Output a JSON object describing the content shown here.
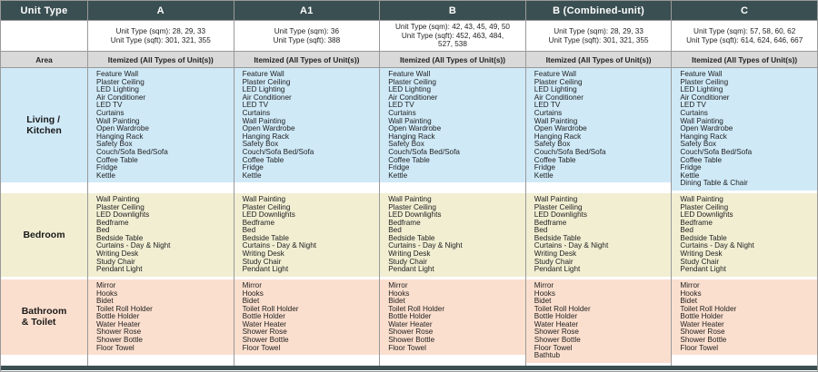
{
  "colors": {
    "header_bg": "#3a4f52",
    "header_text": "#ffffff",
    "area_bg": "#d9d9d9",
    "living_bg": "#cfe9f7",
    "bedroom_bg": "#f1eed2",
    "bathroom_bg": "#fbdfce",
    "border": "#999999",
    "text": "#222222"
  },
  "table": {
    "corner_header": "Unit Type",
    "area_label": "Area",
    "area_value": "Itemized (All Types of Unit(s))",
    "row_labels": {
      "living_lines": [
        "Living /",
        "Kitchen"
      ],
      "bedroom": "Bedroom",
      "bathroom_lines": [
        "Bathroom",
        "& Toilet"
      ]
    },
    "columns": [
      {
        "header": "A",
        "size_lines": [
          "Unit Type (sqm): 28, 29, 33",
          "Unit Type (sqft): 301, 321, 355"
        ],
        "living": [
          "Feature Wall",
          "Plaster Ceiling",
          "LED Lighting",
          "Air Conditioner",
          "LED TV",
          "Curtains",
          "Wall Painting",
          "Open Wardrobe",
          "Hanging Rack",
          "Safety Box",
          "Couch/Sofa Bed/Sofa",
          "Coffee Table",
          "Fridge",
          "Kettle"
        ],
        "bedroom": [
          "Wall Painting",
          "Plaster Ceiling",
          "LED Downlights",
          "Bedframe",
          "Bed",
          "Bedside Table",
          "Curtains - Day & Night",
          "Writing Desk",
          "Study Chair",
          "Pendant Light"
        ],
        "bathroom": [
          "Mirror",
          "Hooks",
          "Bidet",
          "Toilet Roll Holder",
          "Bottle Holder",
          "Water Heater",
          "Shower Rose",
          "Shower Bottle",
          "Floor Towel"
        ]
      },
      {
        "header": "A1",
        "size_lines": [
          "Unit Type (sqm): 36",
          "Unit Type (sqft): 388"
        ],
        "living": [
          "Feature Wall",
          "Plaster Ceiling",
          "LED Lighting",
          "Air Conditioner",
          "LED TV",
          "Curtains",
          "Wall Painting",
          "Open Wardrobe",
          "Hanging Rack",
          "Safety Box",
          "Couch/Sofa Bed/Sofa",
          "Coffee Table",
          "Fridge",
          "Kettle"
        ],
        "bedroom": [
          "Wall Painting",
          "Plaster Ceiling",
          "LED Downlights",
          "Bedframe",
          "Bed",
          "Bedside Table",
          "Curtains - Day & Night",
          "Writing Desk",
          "Study Chair",
          "Pendant Light"
        ],
        "bathroom": [
          "Mirror",
          "Hooks",
          "Bidet",
          "Toilet Roll Holder",
          "Bottle Holder",
          "Water Heater",
          "Shower Rose",
          "Shower Bottle",
          "Floor Towel"
        ]
      },
      {
        "header": "B",
        "size_lines": [
          "Unit Type (sqm): 42, 43, 45, 49, 50",
          "Unit Type (sqft): 452, 463, 484,",
          "527, 538"
        ],
        "living": [
          "Feature Wall",
          "Plaster Ceiling",
          "LED Lighting",
          "Air Conditioner",
          "LED TV",
          "Curtains",
          "Wall Painting",
          "Open Wardrobe",
          "Hanging Rack",
          "Safety Box",
          "Couch/Sofa Bed/Sofa",
          "Coffee Table",
          "Fridge",
          "Kettle"
        ],
        "bedroom": [
          "Wall Painting",
          "Plaster Ceiling",
          "LED Downlights",
          "Bedframe",
          "Bed",
          "Bedside Table",
          "Curtains - Day & Night",
          "Writing Desk",
          "Study Chair",
          "Pendant Light"
        ],
        "bathroom": [
          "Mirror",
          "Hooks",
          "Bidet",
          "Toilet Roll Holder",
          "Bottle Holder",
          "Water Heater",
          "Shower Rose",
          "Shower Bottle",
          "Floor Towel"
        ]
      },
      {
        "header": "B (Combined-unit)",
        "size_lines": [
          "Unit Type (sqm): 28, 29, 33",
          "Unit Type (sqft): 301, 321, 355"
        ],
        "living": [
          "Feature Wall",
          "Plaster Ceiling",
          "LED Lighting",
          "Air Conditioner",
          "LED TV",
          "Curtains",
          "Wall Painting",
          "Open Wardrobe",
          "Hanging Rack",
          "Safety Box",
          "Couch/Sofa Bed/Sofa",
          "Coffee Table",
          "Fridge",
          "Kettle"
        ],
        "bedroom": [
          "Wall Painting",
          "Plaster Ceiling",
          "LED Downlights",
          "Bedframe",
          "Bed",
          "Bedside Table",
          "Curtains - Day & Night",
          "Writing Desk",
          "Study Chair",
          "Pendant Light"
        ],
        "bathroom": [
          "Mirror",
          "Hooks",
          "Bidet",
          "Toilet Roll Holder",
          "Bottle Holder",
          "Water Heater",
          "Shower Rose",
          "Shower Bottle",
          "Floor Towel",
          "Bathtub"
        ]
      },
      {
        "header": "C",
        "size_lines": [
          "Unit Type (sqm): 57, 58, 60, 62",
          "Unit Type (sqft): 614, 624, 646, 667"
        ],
        "living": [
          "Feature Wall",
          "Plaster Ceiling",
          "LED Lighting",
          "Air Conditioner",
          "LED TV",
          "Curtains",
          "Wall Painting",
          "Open Wardrobe",
          "Hanging Rack",
          "Safety Box",
          "Couch/Sofa Bed/Sofa",
          "Coffee Table",
          "Fridge",
          "Kettle",
          "Dining Table & Chair"
        ],
        "bedroom": [
          "Wall Painting",
          "Plaster Ceiling",
          "LED Downlights",
          "Bedframe",
          "Bed",
          "Bedside Table",
          "Curtains - Day & Night",
          "Writing Desk",
          "Study Chair",
          "Pendant Light"
        ],
        "bathroom": [
          "Mirror",
          "Hooks",
          "Bidet",
          "Toilet Roll Holder",
          "Bottle Holder",
          "Water Heater",
          "Shower Rose",
          "Shower Bottle",
          "Floor Towel"
        ]
      }
    ]
  }
}
